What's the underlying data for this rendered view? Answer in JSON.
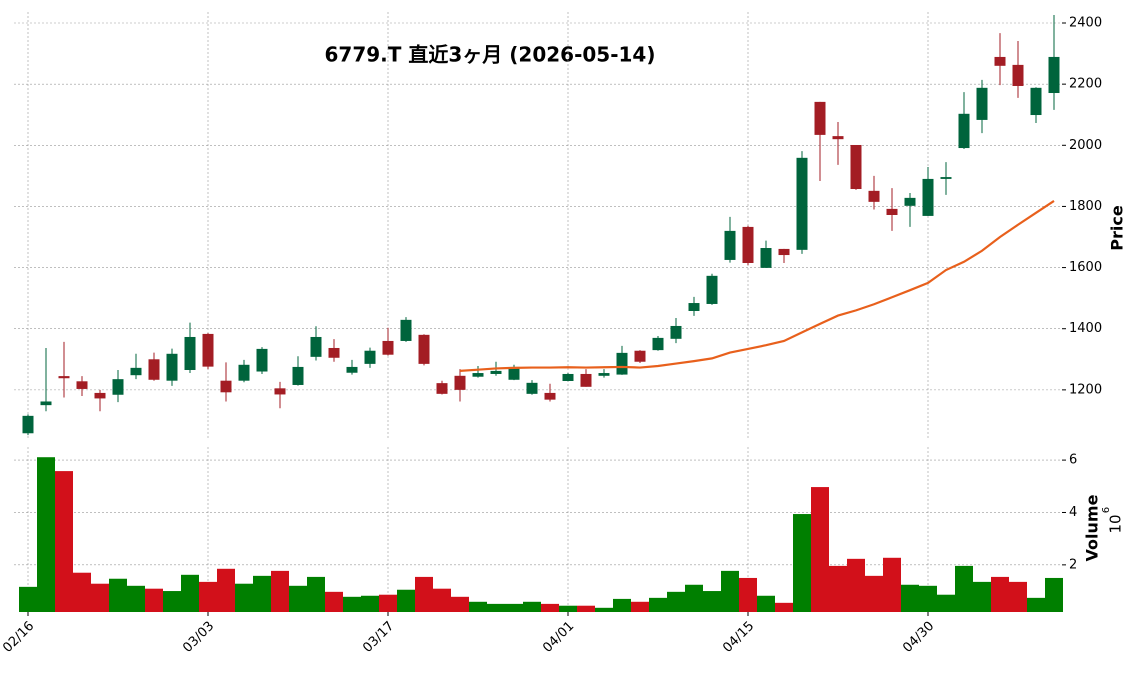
{
  "chart_data": {
    "type": "candlestick",
    "title": "6779.T  直近3ヶ月 (2026-05-14)",
    "categories": [
      "02/16",
      null,
      null,
      null,
      null,
      null,
      null,
      null,
      null,
      null,
      "03/03",
      null,
      null,
      null,
      null,
      null,
      null,
      null,
      null,
      null,
      "03/17",
      null,
      null,
      null,
      null,
      null,
      null,
      null,
      null,
      null,
      "04/01",
      null,
      null,
      null,
      null,
      null,
      null,
      null,
      null,
      null,
      "04/15",
      null,
      null,
      null,
      null,
      null,
      null,
      null,
      null,
      null,
      "04/30",
      null,
      null,
      null,
      null,
      null,
      null,
      null
    ],
    "open": [
      1058,
      1150,
      1245,
      1228,
      1190,
      1184,
      1248,
      1300,
      1230,
      1265,
      1383,
      1230,
      1230,
      1260,
      1205,
      1216,
      1308,
      1337,
      1256,
      1285,
      1360,
      1360,
      1380,
      1222,
      1246,
      1243,
      1252,
      1233,
      1187,
      1190,
      1229,
      1252,
      1246,
      1250,
      1328,
      1330,
      1367,
      1458,
      1481,
      1625,
      1733,
      1599,
      1661,
      1658,
      2142,
      2030,
      2001,
      1851,
      1792,
      1802,
      1769,
      1890,
      1991,
      2083,
      2289,
      2263,
      2099,
      2171
    ],
    "high": [
      1120,
      1337,
      1357,
      1245,
      1200,
      1265,
      1318,
      1322,
      1335,
      1420,
      1386,
      1290,
      1298,
      1340,
      1226,
      1310,
      1408,
      1366,
      1298,
      1338,
      1403,
      1438,
      1382,
      1230,
      1268,
      1278,
      1292,
      1282,
      1232,
      1220,
      1255,
      1268,
      1268,
      1344,
      1330,
      1376,
      1435,
      1504,
      1580,
      1766,
      1737,
      1688,
      1661,
      1981,
      2142,
      2076,
      2001,
      1900,
      1860,
      1844,
      1929,
      1945,
      2174,
      2214,
      2367,
      2341,
      2190,
      2426
    ],
    "low": [
      1052,
      1130,
      1175,
      1180,
      1130,
      1160,
      1235,
      1230,
      1213,
      1255,
      1268,
      1162,
      1225,
      1252,
      1140,
      1214,
      1296,
      1292,
      1250,
      1272,
      1312,
      1357,
      1280,
      1185,
      1162,
      1240,
      1246,
      1232,
      1184,
      1162,
      1228,
      1210,
      1240,
      1249,
      1288,
      1328,
      1353,
      1442,
      1478,
      1616,
      1608,
      1599,
      1615,
      1645,
      1883,
      1936,
      1854,
      1790,
      1720,
      1733,
      1769,
      1838,
      1988,
      2040,
      2197,
      2155,
      2073,
      2116
    ],
    "close": [
      1115,
      1162,
      1238,
      1203,
      1172,
      1235,
      1272,
      1233,
      1318,
      1373,
      1276,
      1192,
      1282,
      1334,
      1185,
      1275,
      1373,
      1305,
      1275,
      1328,
      1315,
      1429,
      1285,
      1187,
      1200,
      1255,
      1262,
      1275,
      1223,
      1168,
      1252,
      1210,
      1255,
      1321,
      1292,
      1370,
      1409,
      1484,
      1573,
      1720,
      1615,
      1664,
      1641,
      1959,
      2034,
      2020,
      1857,
      1815,
      1772,
      1828,
      1890,
      1896,
      2103,
      2188,
      2260,
      2194,
      2188,
      2289
    ],
    "up_color": "#00643c",
    "down_color": "#a31d24",
    "ylim": [
      1036,
      2436
    ],
    "yticks": [
      1200,
      1400,
      1600,
      1800,
      2000,
      2200,
      2400
    ],
    "ylabel": "Price",
    "grid": true,
    "ma": {
      "color": "#e8601c",
      "values": [
        null,
        null,
        null,
        null,
        null,
        null,
        null,
        null,
        null,
        null,
        null,
        null,
        null,
        null,
        null,
        null,
        null,
        null,
        null,
        null,
        null,
        null,
        null,
        null,
        1262,
        1266,
        1270,
        1272,
        1273,
        1273,
        1274,
        1273,
        1274,
        1275,
        1273,
        1278,
        1286,
        1294,
        1303,
        1322,
        1334,
        1346,
        1360,
        1388,
        1416,
        1443,
        1460,
        1480,
        1503,
        1526,
        1550,
        1592,
        1619,
        1655,
        1700,
        1740,
        1779,
        1818
      ]
    },
    "volume": {
      "values": [
        1.16,
        6.11,
        5.58,
        1.7,
        1.28,
        1.47,
        1.2,
        1.09,
        1.0,
        1.62,
        1.35,
        1.85,
        1.28,
        1.58,
        1.77,
        1.2,
        1.54,
        0.97,
        0.78,
        0.82,
        0.86,
        1.05,
        1.54,
        1.09,
        0.78,
        0.59,
        0.51,
        0.51,
        0.59,
        0.51,
        0.44,
        0.44,
        0.36,
        0.7,
        0.59,
        0.74,
        0.97,
        1.24,
        1.0,
        1.77,
        1.5,
        0.82,
        0.55,
        3.94,
        4.97,
        1.96,
        2.23,
        1.58,
        2.27,
        1.24,
        1.2,
        0.86,
        1.96,
        1.35,
        1.54,
        1.35,
        0.74,
        1.5
      ],
      "up_color": "#007f00",
      "down_color": "#d2101a",
      "ylim": [
        0.2,
        6.5
      ],
      "yticks": [
        2,
        4,
        6
      ],
      "ylabel": "Volume",
      "offset_base": "10",
      "offset_exponent": "6"
    }
  }
}
